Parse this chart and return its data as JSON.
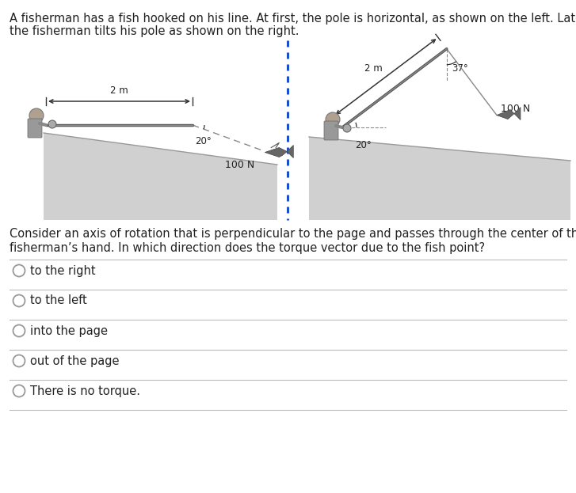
{
  "title_text": "A fisherman has a fish hooked on his line. At first, the pole is horizontal, as shown on the left. Later,",
  "title_text2": "the fisherman tilts his pole as shown on the right.",
  "question_text": "Consider an axis of rotation that is perpendicular to the page and passes through the center of the",
  "question_text2": "fisherman’s hand. In which direction does the torque vector due to the fish point?",
  "choices": [
    "to the right",
    "to the left",
    "into the page",
    "out of the page",
    "There is no torque."
  ],
  "bg_color": "#ffffff",
  "text_color": "#222222",
  "divider_color": "#bbbbbb",
  "blue_color": "#1a4fcc",
  "left_label_2m": "2 m",
  "left_label_angle": "20°",
  "left_label_force": "100 N",
  "right_label_2m": "2 m",
  "right_label_angle1": "37°",
  "right_label_angle2": "20°",
  "right_label_force": "100 N",
  "font_size_title": 10.5,
  "font_size_labels": 8.5,
  "font_size_choices": 10.5,
  "font_size_question": 10.5
}
